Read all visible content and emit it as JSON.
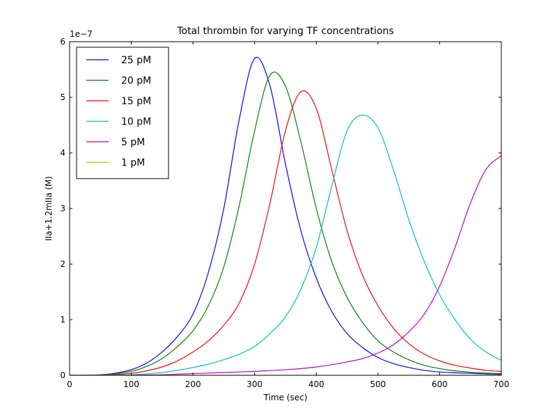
{
  "chart_data": {
    "type": "line",
    "title": "Total thrombin for varying TF concentrations",
    "xlabel": "Time (sec)",
    "ylabel": "IIa+1.2mIIa (M)",
    "y_multiplier_label": "1e−7",
    "xlim": [
      0,
      700
    ],
    "ylim": [
      0,
      6
    ],
    "xticks": [
      0,
      100,
      200,
      300,
      400,
      500,
      600,
      700
    ],
    "yticks": [
      0,
      1,
      2,
      3,
      4,
      5,
      6
    ],
    "grid": false,
    "legend_position": "top-left",
    "x": [
      0,
      25,
      50,
      75,
      100,
      125,
      150,
      175,
      200,
      225,
      250,
      275,
      300,
      325,
      350,
      375,
      400,
      425,
      450,
      475,
      500,
      525,
      550,
      575,
      600,
      625,
      650,
      675,
      700
    ],
    "series": [
      {
        "name": "25 pM",
        "color": "#0000ff",
        "values": [
          0,
          0,
          0.01,
          0.04,
          0.1,
          0.22,
          0.42,
          0.7,
          1.1,
          1.85,
          3.0,
          4.6,
          5.7,
          5.2,
          3.8,
          2.6,
          1.75,
          1.15,
          0.75,
          0.5,
          0.32,
          0.21,
          0.14,
          0.09,
          0.06,
          0.045,
          0.035,
          0.025,
          0.02
        ]
      },
      {
        "name": "20 pM",
        "color": "#008000",
        "values": [
          0,
          0,
          0.01,
          0.03,
          0.07,
          0.16,
          0.3,
          0.52,
          0.8,
          1.25,
          1.95,
          3.05,
          4.4,
          5.4,
          5.2,
          4.2,
          3.0,
          2.05,
          1.4,
          0.95,
          0.62,
          0.42,
          0.28,
          0.18,
          0.12,
          0.08,
          0.055,
          0.04,
          0.03
        ]
      },
      {
        "name": "15 pM",
        "color": "#ff0000",
        "values": [
          0,
          0,
          0.005,
          0.015,
          0.035,
          0.08,
          0.15,
          0.26,
          0.42,
          0.62,
          0.9,
          1.3,
          2.0,
          3.1,
          4.4,
          5.1,
          4.8,
          3.7,
          2.6,
          1.8,
          1.25,
          0.85,
          0.57,
          0.38,
          0.26,
          0.18,
          0.13,
          0.09,
          0.07
        ]
      },
      {
        "name": "10 pM",
        "color": "#00bfbf",
        "values": [
          0,
          0,
          0,
          0.005,
          0.01,
          0.025,
          0.05,
          0.09,
          0.14,
          0.2,
          0.28,
          0.38,
          0.52,
          0.75,
          1.05,
          1.55,
          2.3,
          3.4,
          4.4,
          4.68,
          4.45,
          3.7,
          2.8,
          2.05,
          1.45,
          1.0,
          0.65,
          0.42,
          0.27
        ]
      },
      {
        "name": "5 pM",
        "color": "#bf00bf",
        "values": [
          0,
          0,
          0,
          0,
          0,
          0.005,
          0.01,
          0.02,
          0.03,
          0.04,
          0.05,
          0.06,
          0.07,
          0.085,
          0.1,
          0.12,
          0.15,
          0.19,
          0.24,
          0.3,
          0.4,
          0.55,
          0.78,
          1.1,
          1.6,
          2.3,
          3.1,
          3.7,
          3.95
        ]
      },
      {
        "name": "1 pM",
        "color": "#bfbf00",
        "values": [
          0,
          0,
          0,
          0,
          0,
          0,
          0,
          0,
          0,
          0,
          0,
          0,
          0,
          0,
          0,
          0,
          0,
          0,
          0,
          0,
          0,
          0,
          0,
          0,
          0,
          0,
          0,
          0,
          0.005
        ]
      }
    ]
  }
}
